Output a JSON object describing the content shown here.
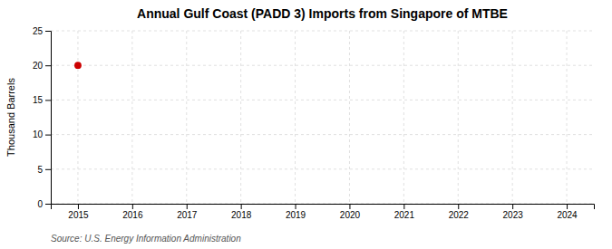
{
  "chart_data": {
    "type": "scatter",
    "title": "Annual Gulf Coast (PADD 3) Imports from Singapore of MTBE",
    "ylabel": "Thousand Barrels",
    "source": "Source: U.S. Energy Information Administration",
    "x": [
      2015
    ],
    "values": [
      20
    ],
    "color": "#cc0000",
    "marker": "circle",
    "xlim": [
      2014.5,
      2024.5
    ],
    "xticks": [
      2015,
      2016,
      2017,
      2018,
      2019,
      2020,
      2021,
      2022,
      2023,
      2024
    ],
    "ylim": [
      0,
      25
    ],
    "yticks": [
      0,
      5,
      10,
      15,
      20,
      25
    ],
    "grid": true
  }
}
